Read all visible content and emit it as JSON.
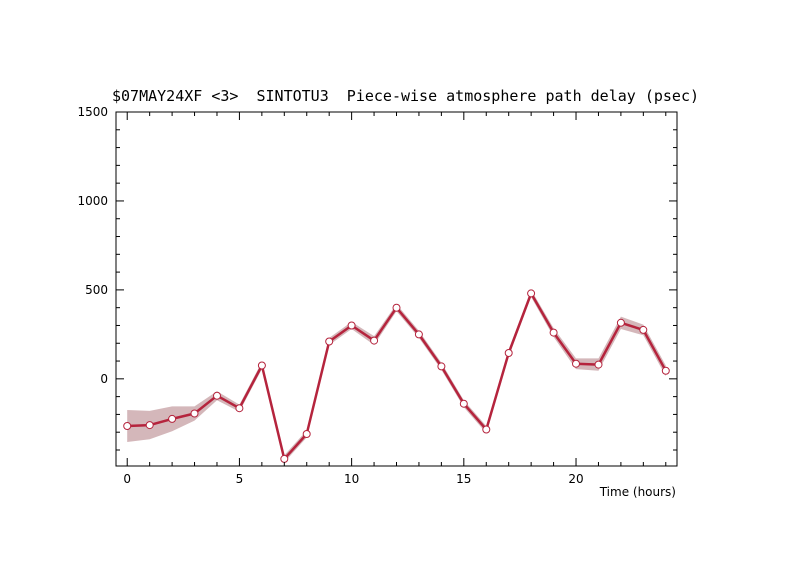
{
  "chart_data": {
    "type": "line",
    "title": "$07MAY24XF <3>  SINTOTU3  Piece-wise atmosphere path delay (psec)",
    "xlabel": "Time (hours)",
    "ylabel": "",
    "xlim": [
      -0.5,
      24.5
    ],
    "ylim": [
      -490,
      1500
    ],
    "x_ticks": [
      0,
      5,
      10,
      15,
      20
    ],
    "y_ticks": [
      0,
      500,
      1000,
      1500
    ],
    "x_minor_step": 1,
    "y_minor_step": 100,
    "grid": false,
    "line_color": "#b5243d",
    "band_color": "#d4b7ba",
    "marker_edge_color": "#b5243d",
    "marker_fill_color": "#ffffff",
    "series": [
      {
        "x": [
          0,
          1,
          2,
          3,
          4,
          5,
          6,
          7,
          8,
          9,
          10,
          11,
          12,
          13,
          14,
          15,
          16,
          17,
          18,
          19,
          20,
          21,
          22,
          23,
          24
        ],
        "values": [
          -265,
          -260,
          -225,
          -195,
          -95,
          -165,
          75,
          -450,
          -310,
          210,
          300,
          215,
          400,
          250,
          70,
          -140,
          -285,
          145,
          480,
          260,
          85,
          80,
          315,
          275,
          45
        ],
        "error": [
          90,
          80,
          70,
          40,
          25,
          20,
          20,
          20,
          20,
          20,
          20,
          25,
          20,
          20,
          20,
          20,
          20,
          20,
          20,
          25,
          30,
          35,
          35,
          30,
          30
        ]
      }
    ]
  }
}
